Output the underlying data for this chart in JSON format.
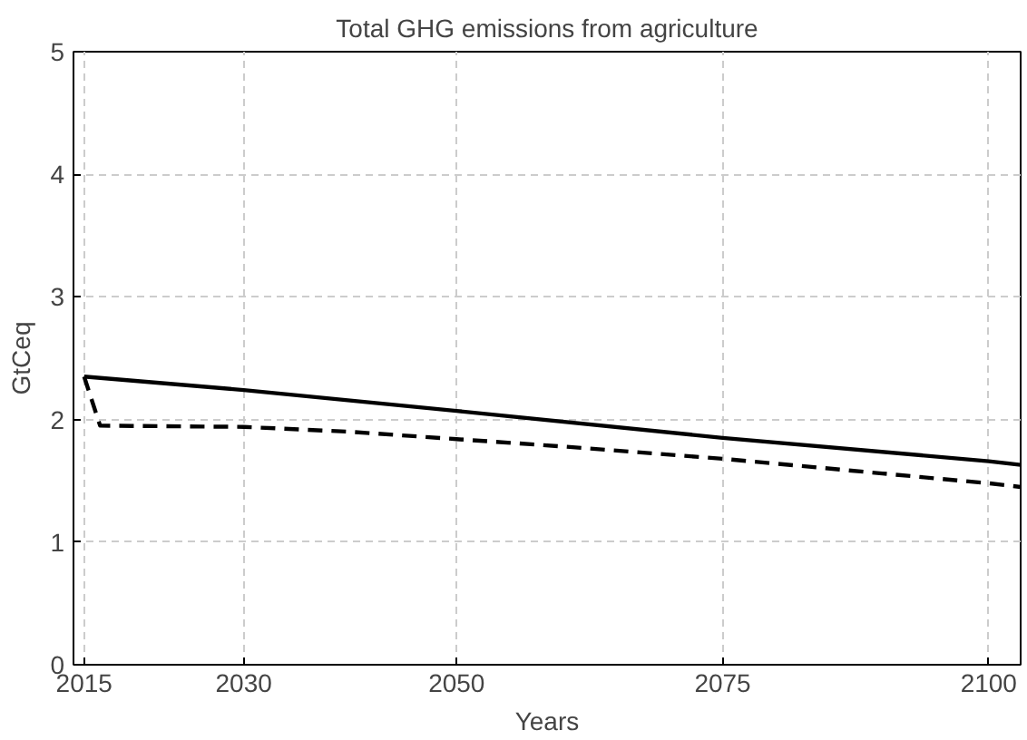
{
  "chart_data": {
    "type": "line",
    "title": "Total GHG emissions from agriculture",
    "xlabel": "Years",
    "ylabel": "GtCeq",
    "xlim": [
      2014,
      2103
    ],
    "xticks": [
      2015,
      2030,
      2050,
      2075,
      2100
    ],
    "ylim": [
      0,
      5
    ],
    "yticks": [
      0,
      1,
      2,
      3,
      4,
      5
    ],
    "grid": true,
    "series": [
      {
        "color": "#000000",
        "line_style": "solid",
        "x": [
          2015,
          2030,
          2050,
          2075,
          2100,
          2103
        ],
        "values": [
          2.35,
          2.24,
          2.07,
          1.85,
          1.66,
          1.63
        ]
      },
      {
        "color": "#000000",
        "line_style": "dashed",
        "x": [
          2015,
          2016.5,
          2030,
          2040,
          2050,
          2060,
          2075,
          2090,
          2100,
          2103
        ],
        "values": [
          2.35,
          1.95,
          1.94,
          1.9,
          1.84,
          1.78,
          1.68,
          1.56,
          1.48,
          1.45
        ]
      }
    ]
  }
}
